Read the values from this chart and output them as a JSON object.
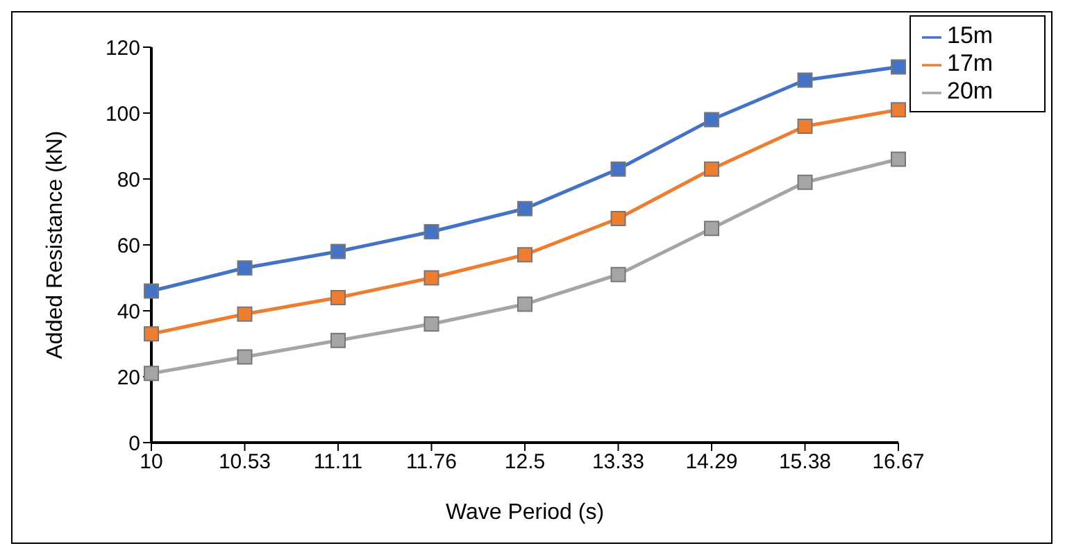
{
  "chart_data": {
    "type": "line",
    "xlabel": "Wave Period (s)",
    "ylabel": "Added Resistance (kN)",
    "categories": [
      "10",
      "10.53",
      "11.11",
      "11.76",
      "12.5",
      "13.33",
      "14.29",
      "15.38",
      "16.67"
    ],
    "series": [
      {
        "name": "15m",
        "color": "#4472c4",
        "values": [
          46,
          53,
          58,
          64,
          71,
          83,
          98,
          110,
          114
        ]
      },
      {
        "name": "17m",
        "color": "#ed7d31",
        "values": [
          33,
          39,
          44,
          50,
          57,
          68,
          83,
          96,
          101
        ]
      },
      {
        "name": "20m",
        "color": "#a5a5a5",
        "values": [
          21,
          26,
          31,
          36,
          42,
          51,
          65,
          79,
          86
        ]
      }
    ],
    "ylim": [
      0,
      120
    ],
    "yticks": [
      0,
      20,
      40,
      60,
      80,
      100,
      120
    ],
    "grid": false,
    "legend": "top right",
    "marker": "square",
    "line_style": "solid"
  }
}
